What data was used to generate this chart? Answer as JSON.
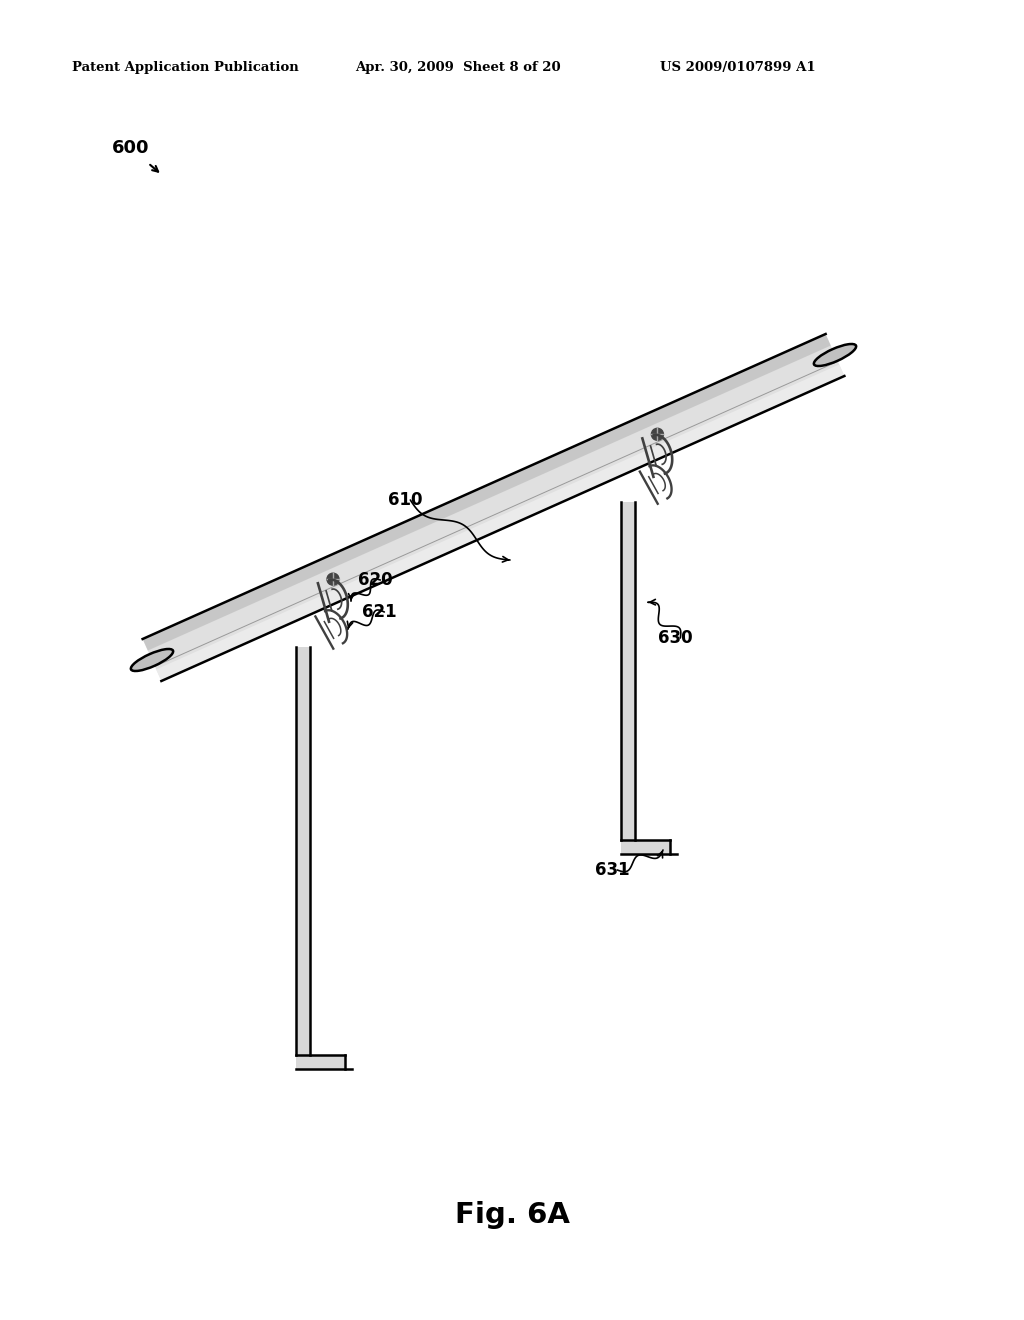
{
  "fig_label": "Fig. 6A",
  "patent_line1": "Patent Application Publication",
  "patent_line2": "Apr. 30, 2009  Sheet 8 of 20",
  "patent_line3": "US 2009/0107899 A1",
  "ref_600": "600",
  "ref_610": "610",
  "ref_620": "620",
  "ref_621": "621",
  "ref_630": "630",
  "ref_631": "631",
  "bg_color": "#ffffff",
  "line_color": "#000000",
  "pipe_fill": "#e0e0e0",
  "pipe_highlight": "#f0f0f0",
  "pipe_shadow": "#b0b0b0",
  "hook_fill": "#d8d8d8",
  "clip_color": "#505050"
}
